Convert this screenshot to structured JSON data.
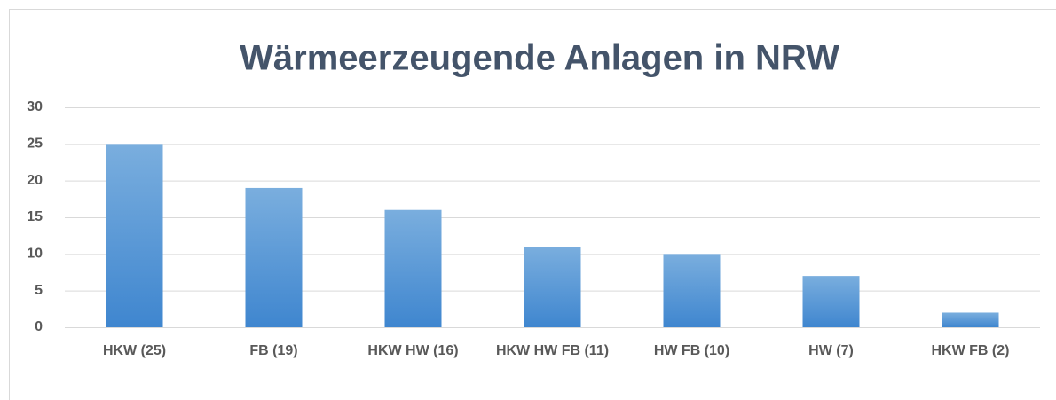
{
  "chart_data": {
    "type": "bar",
    "title": "Wärmeerzeugende Anlagen in NRW",
    "categories": [
      "HKW (25)",
      "FB (19)",
      "HKW HW (16)",
      "HKW HW FB (11)",
      "HW FB (10)",
      "HW (7)",
      "HKW FB (2)"
    ],
    "values": [
      25,
      19,
      16,
      11,
      10,
      7,
      2
    ],
    "color": "#5b9bd5",
    "ylim": [
      0,
      30
    ],
    "yticks": [
      0,
      5,
      10,
      15,
      20,
      25,
      30
    ],
    "grid": true
  }
}
